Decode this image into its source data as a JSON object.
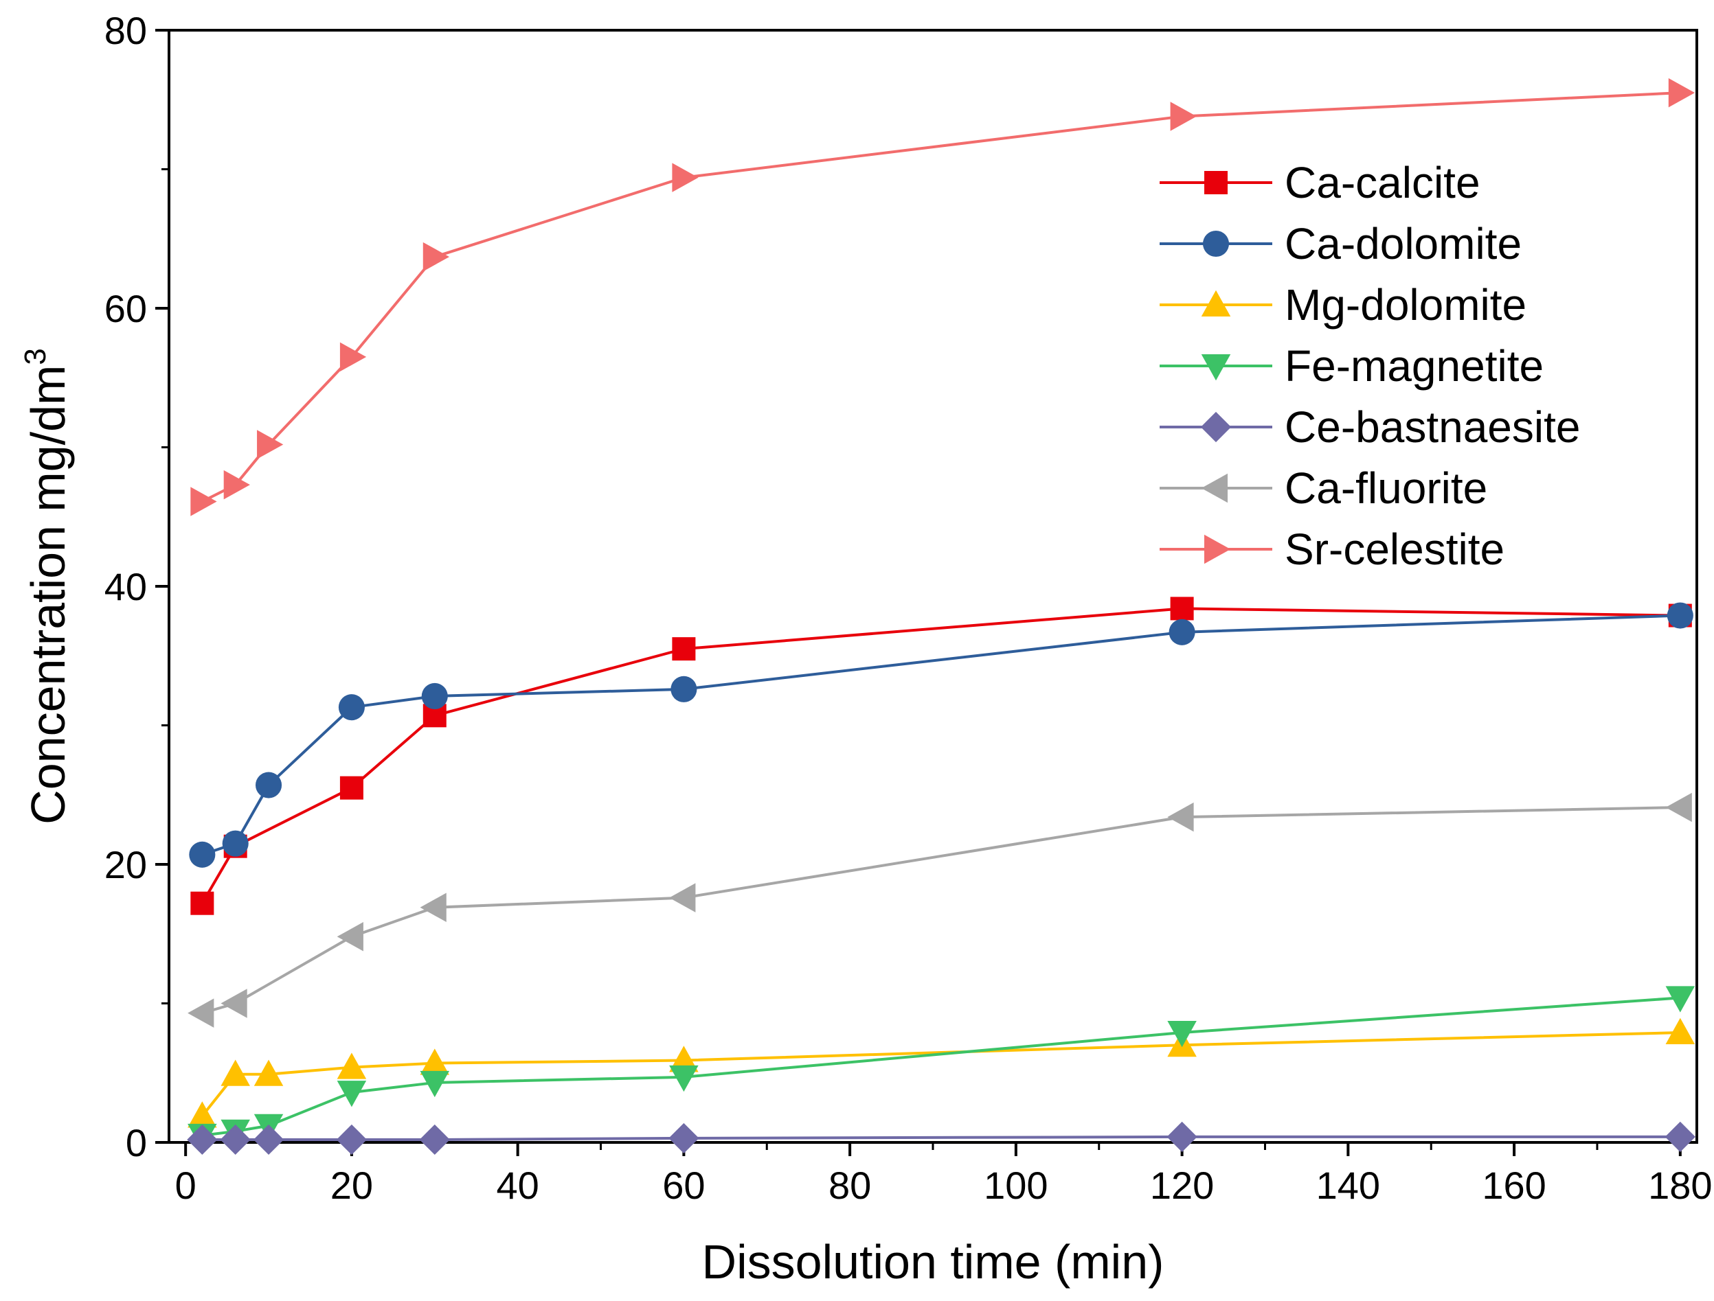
{
  "chart_data": {
    "type": "line",
    "title": "",
    "xlabel": "Dissolution time (min)",
    "ylabel": "Concentration mg/dm",
    "ylabel_superscript": "3",
    "xlim": [
      -2,
      182
    ],
    "ylim": [
      0,
      80
    ],
    "xticks": [
      0,
      20,
      40,
      60,
      80,
      100,
      120,
      140,
      160,
      180
    ],
    "yticks": [
      0,
      20,
      40,
      60,
      80
    ],
    "grid": false,
    "legend_position": "top-right",
    "x": [
      2,
      6,
      10,
      20,
      30,
      60,
      120,
      180
    ],
    "series": [
      {
        "name": "Ca-calcite",
        "color": "#e8000b",
        "marker": "square",
        "values": [
          17.2,
          21.3,
          null,
          25.5,
          30.7,
          35.5,
          38.4,
          37.9
        ]
      },
      {
        "name": "Ca-dolomite",
        "color": "#2e5d9a",
        "marker": "circle",
        "values": [
          20.7,
          21.5,
          25.7,
          31.3,
          32.1,
          32.6,
          36.7,
          37.9
        ]
      },
      {
        "name": "Mg-dolomite",
        "color": "#ffc000",
        "marker": "triangle-up",
        "values": [
          1.9,
          4.9,
          4.9,
          5.4,
          5.7,
          5.9,
          7.0,
          7.9
        ]
      },
      {
        "name": "Fe-magnetite",
        "color": "#3cc266",
        "marker": "triangle-down",
        "values": [
          0.5,
          0.8,
          1.2,
          3.6,
          4.3,
          4.7,
          7.9,
          10.4
        ]
      },
      {
        "name": "Ce-bastnaesite",
        "color": "#6f6aa6",
        "marker": "diamond",
        "values": [
          0.2,
          0.2,
          0.2,
          0.2,
          0.2,
          0.3,
          0.4,
          0.4
        ]
      },
      {
        "name": "Ca-fluorite",
        "color": "#a6a6a6",
        "marker": "triangle-left",
        "values": [
          9.3,
          10.0,
          null,
          14.8,
          16.9,
          17.6,
          23.4,
          24.1
        ]
      },
      {
        "name": "Sr-celestite",
        "color": "#f26c6c",
        "marker": "triangle-right",
        "values": [
          46.1,
          47.3,
          50.2,
          56.5,
          63.7,
          69.4,
          73.8,
          75.5
        ]
      }
    ]
  }
}
